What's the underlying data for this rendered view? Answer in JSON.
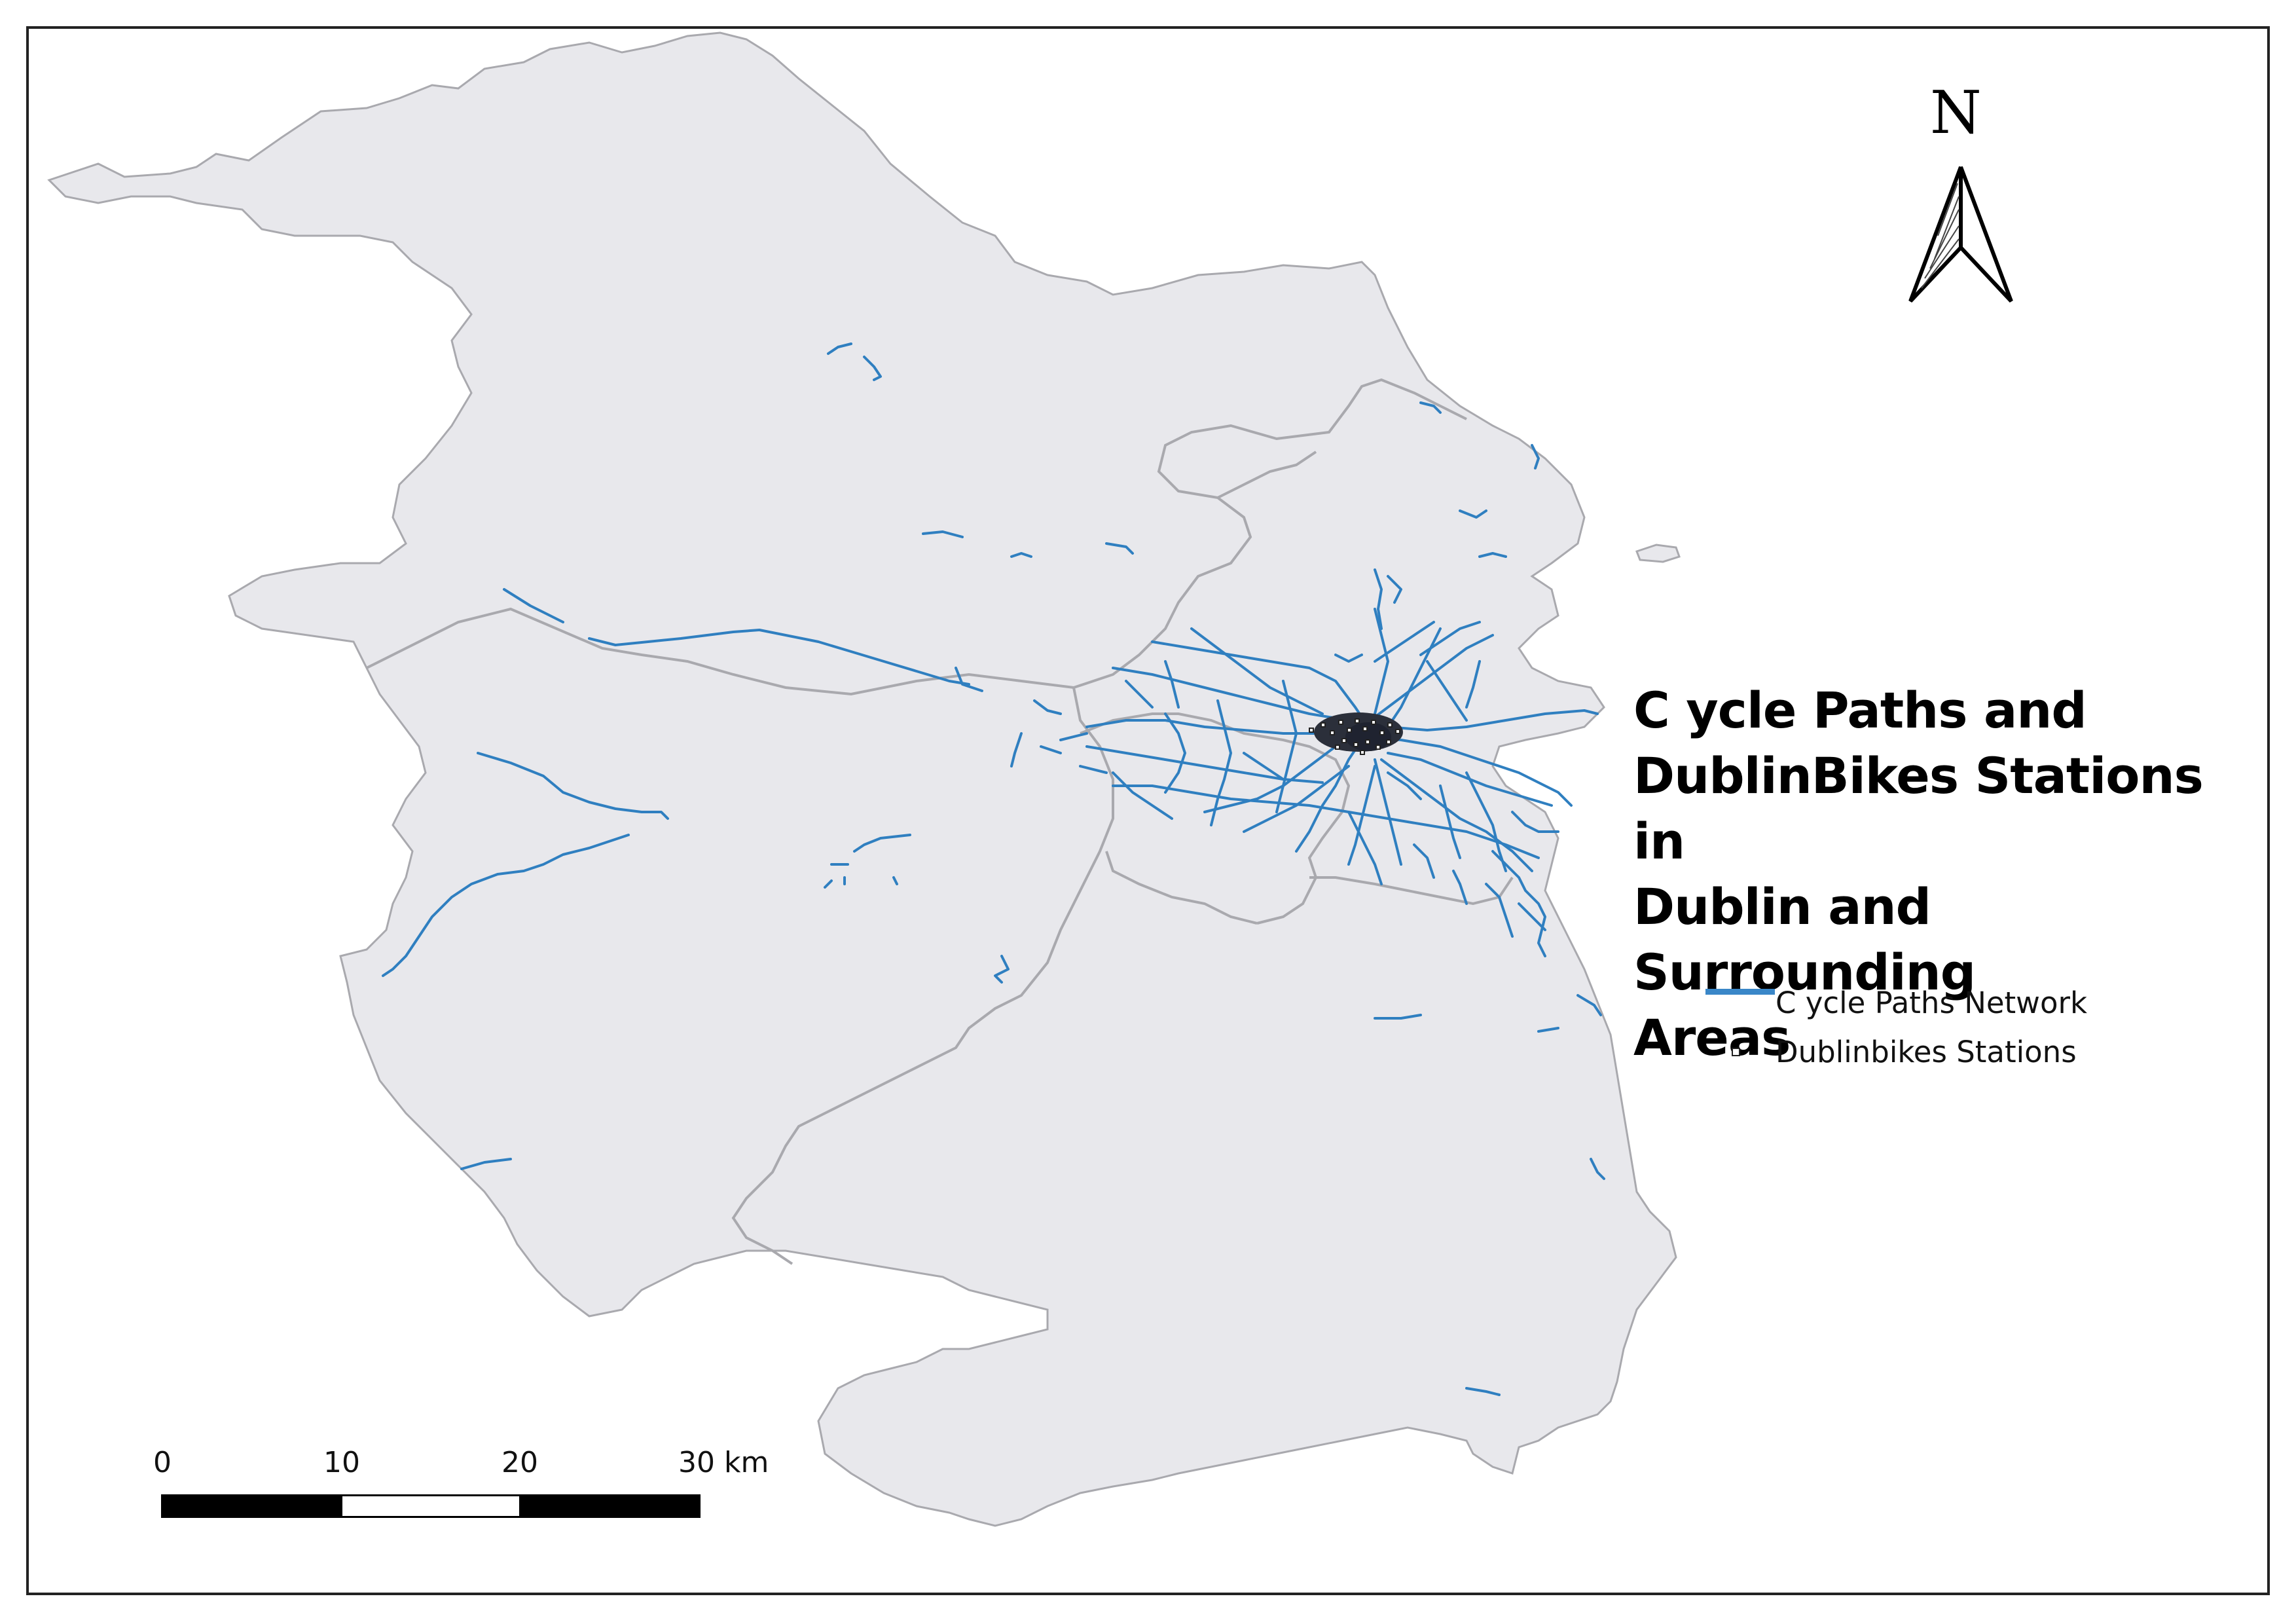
{
  "map": {
    "title": "Cycle Paths and DublinBikes Stations in Dublin and Surrounding Areas",
    "title_lines": [
      "C ycle Paths and",
      "DublinBikes Stations in",
      "Dublin and Surrounding",
      "Areas"
    ],
    "north_arrow_label": "N",
    "legend": {
      "items": [
        {
          "label": "C ycle Paths Network",
          "symbol": "line",
          "color": "#3a87c8"
        },
        {
          "label": "Dublinbikes Stations",
          "symbol": "square-point",
          "color": "#222222"
        }
      ]
    },
    "scale_bar": {
      "labels": [
        "0",
        "10",
        "20",
        "30 km"
      ],
      "segments": [
        "black",
        "white",
        "black"
      ]
    },
    "colors": {
      "land": "#e8e8ec",
      "boundary": "#a9a9ae",
      "cycle_paths": "#2f7fc0",
      "stations": "#222222",
      "frame": "#222222"
    }
  }
}
